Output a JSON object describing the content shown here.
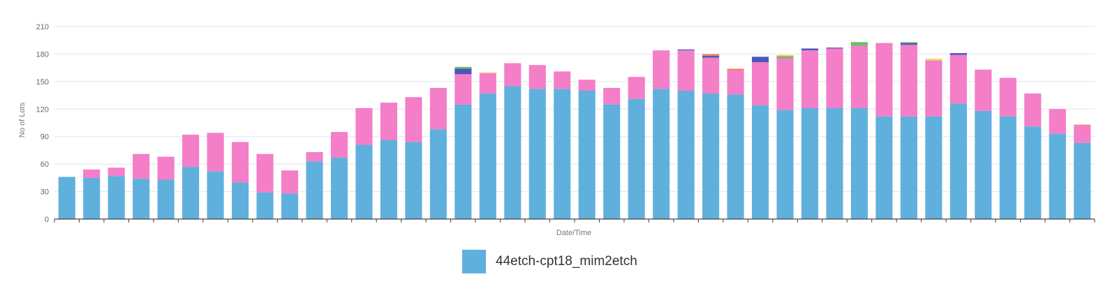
{
  "chart_data": {
    "type": "bar",
    "stacked": true,
    "xlabel": "Date/Time",
    "ylabel": "No of Lots",
    "ylim": [
      0,
      210
    ],
    "yticks": [
      0,
      30,
      60,
      90,
      120,
      150,
      180,
      210
    ],
    "grid": true,
    "legend": "bottom-center",
    "colors": {
      "base": "#60b0dd",
      "pink": "#f47ec8",
      "navy": "#4a56be",
      "green": "#6cbd6c",
      "orange": "#f0846a",
      "yellow": "#f2d86a"
    },
    "series": [
      {
        "name": "44etch-cpt18_mim2etch",
        "color_key": "base",
        "values": [
          46,
          45,
          47,
          44,
          43,
          57,
          52,
          40,
          29,
          28,
          63,
          67,
          81,
          86,
          84,
          98,
          125,
          137,
          145,
          142,
          142,
          140,
          125,
          131,
          142,
          140,
          137,
          136,
          124,
          119,
          121,
          121,
          121,
          112,
          112,
          112,
          126,
          118,
          112,
          101,
          93,
          83
        ]
      },
      {
        "color_key": "pink",
        "values": [
          0,
          9,
          9,
          27,
          25,
          35,
          42,
          44,
          42,
          25,
          10,
          28,
          40,
          41,
          49,
          45,
          33,
          22,
          25,
          26,
          19,
          12,
          18,
          24,
          42,
          44,
          39,
          26,
          47,
          56,
          63,
          65,
          68,
          80,
          78,
          61,
          53,
          45,
          42,
          36,
          27,
          19
        ]
      },
      {
        "color_key": "navy",
        "values": [
          0,
          0,
          0,
          0,
          0,
          0,
          0,
          0,
          0,
          0,
          0,
          0,
          0,
          0,
          0,
          0,
          6,
          0,
          0,
          0,
          0,
          0,
          0,
          0,
          0,
          1,
          2,
          0,
          6,
          0,
          2,
          1,
          0,
          0,
          2,
          0,
          2,
          0,
          0,
          0,
          0,
          0
        ]
      },
      {
        "color_key": "green",
        "values": [
          0,
          0,
          0,
          0,
          0,
          0,
          0,
          0,
          0,
          0,
          0,
          0,
          0,
          0,
          0,
          0,
          2,
          0,
          0,
          0,
          0,
          0,
          0,
          0,
          0,
          0,
          0,
          0,
          0,
          2,
          0,
          0,
          4,
          0,
          1,
          0,
          0,
          0,
          0,
          0,
          0,
          0
        ]
      },
      {
        "color_key": "orange",
        "values": [
          0,
          0,
          0,
          0,
          0,
          0,
          0,
          0,
          0,
          0,
          0,
          0,
          0,
          0,
          0,
          0,
          0,
          0,
          0,
          0,
          0,
          0,
          0,
          0,
          0,
          0,
          2,
          2,
          0,
          1,
          0,
          0,
          0,
          0,
          0,
          0,
          0,
          0,
          0,
          0,
          0,
          1
        ]
      },
      {
        "color_key": "yellow",
        "values": [
          0,
          0,
          0,
          0,
          0,
          0,
          0,
          0,
          0,
          0,
          0,
          0,
          0,
          0,
          0,
          0,
          0,
          1,
          0,
          0,
          0,
          0,
          0,
          0,
          0,
          0,
          0,
          0,
          0,
          1,
          0,
          0,
          0,
          0,
          0,
          2,
          0,
          0,
          0,
          0,
          0,
          0
        ]
      }
    ]
  }
}
